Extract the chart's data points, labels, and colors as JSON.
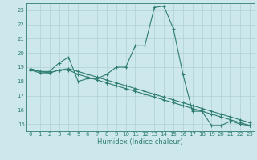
{
  "xlabel": "Humidex (Indice chaleur)",
  "bg_color": "#cde8ed",
  "grid_color": "#b0cfd5",
  "line_color": "#2e7d6e",
  "ylim": [
    14.5,
    23.5
  ],
  "xlim": [
    -0.5,
    23.5
  ],
  "yticks": [
    15,
    16,
    17,
    18,
    19,
    20,
    21,
    22,
    23
  ],
  "xticks": [
    0,
    1,
    2,
    3,
    4,
    5,
    6,
    7,
    8,
    9,
    10,
    11,
    12,
    13,
    14,
    15,
    16,
    17,
    18,
    19,
    20,
    21,
    22,
    23
  ],
  "line1_x": [
    0,
    1,
    2,
    3,
    4,
    5,
    6,
    7,
    8,
    9,
    10,
    11,
    12,
    13,
    14,
    15,
    16,
    17,
    18,
    19,
    20,
    21,
    22,
    23
  ],
  "line1_y": [
    18.8,
    18.7,
    18.7,
    19.3,
    19.7,
    18.0,
    18.2,
    18.2,
    18.5,
    19.0,
    19.0,
    20.5,
    20.5,
    23.2,
    23.3,
    21.7,
    18.5,
    15.9,
    15.9,
    14.9,
    14.9,
    15.2,
    15.0,
    14.9
  ],
  "line2_x": [
    0,
    1,
    2,
    3,
    4,
    5,
    6,
    7,
    8,
    9,
    10,
    11,
    12,
    13,
    14,
    15,
    16,
    17,
    18,
    19,
    20,
    21,
    22,
    23
  ],
  "line2_y": [
    18.8,
    18.6,
    18.6,
    18.8,
    18.8,
    18.5,
    18.3,
    18.1,
    17.9,
    17.7,
    17.5,
    17.3,
    17.1,
    16.9,
    16.7,
    16.5,
    16.3,
    16.1,
    15.9,
    15.7,
    15.5,
    15.3,
    15.1,
    14.9
  ],
  "line3_x": [
    0,
    1,
    2,
    3,
    4,
    5,
    6,
    7,
    8,
    9,
    10,
    11,
    12,
    13,
    14,
    15,
    16,
    17,
    18,
    19,
    20,
    21,
    22,
    23
  ],
  "line3_y": [
    18.9,
    18.7,
    18.6,
    18.8,
    18.9,
    18.7,
    18.5,
    18.3,
    18.1,
    17.9,
    17.7,
    17.5,
    17.3,
    17.1,
    16.9,
    16.7,
    16.5,
    16.3,
    16.1,
    15.9,
    15.7,
    15.5,
    15.3,
    15.1
  ]
}
